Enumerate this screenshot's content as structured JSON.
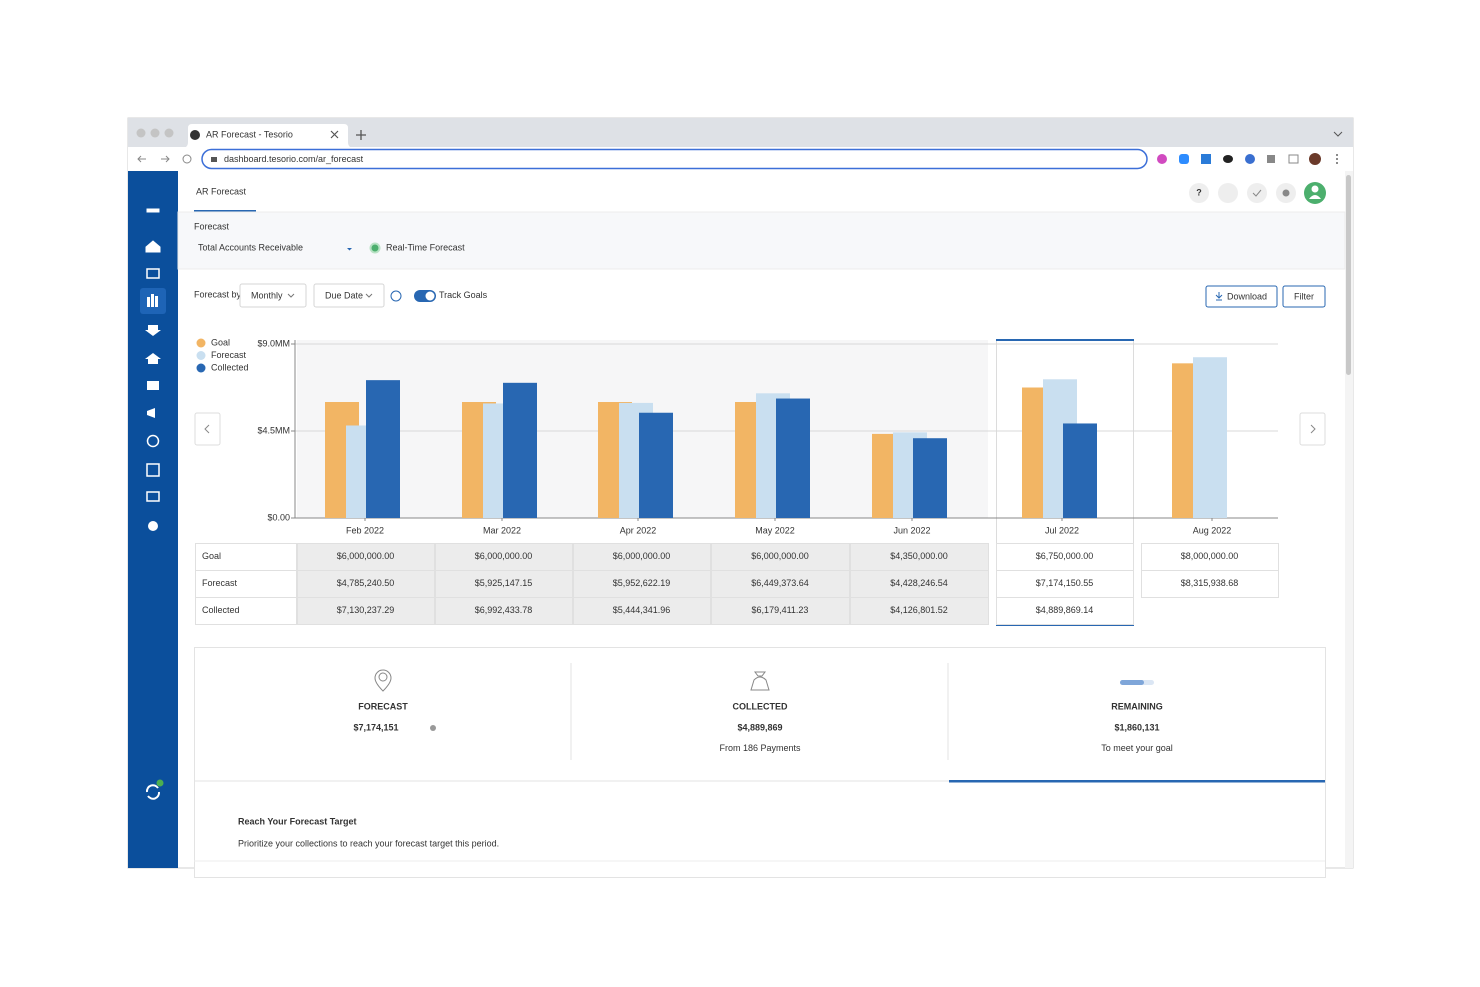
{
  "browser": {
    "tab_title": "AR Forecast - Tesorio",
    "url": "dashboard.tesorio.com/ar_forecast"
  },
  "header": {
    "page_tab": "AR Forecast",
    "help": "?",
    "section_label": "Forecast",
    "view_title": "Total Accounts Receivable",
    "status": "Real-Time Forecast"
  },
  "controls": {
    "forecast_by_label": "Forecast by",
    "period": "Monthly",
    "date_basis": "Due Date",
    "toggle": "Track Goals",
    "download": "Download",
    "filter": "Filter"
  },
  "chart_data": {
    "type": "bar",
    "categories": [
      "Feb 2022",
      "Mar 2022",
      "Apr 2022",
      "May 2022",
      "Jun 2022",
      "Jul 2022",
      "Aug 2022"
    ],
    "series": [
      {
        "name": "Goal",
        "color": "#f2b564",
        "values": [
          6000000,
          6000000,
          6000000,
          6000000,
          4350000,
          6750000,
          8000000
        ],
        "value_labels": [
          "$6,000,000.00",
          "$6,000,000.00",
          "$6,000,000.00",
          "$6,000,000.00",
          "$4,350,000.00",
          "$6,750,000.00",
          "$8,000,000.00"
        ]
      },
      {
        "name": "Forecast",
        "color": "#c9dff0",
        "values": [
          4785240.5,
          5925147.15,
          5952622.19,
          6449373.64,
          4428246.54,
          7174150.55,
          8315938.68
        ],
        "value_labels": [
          "$4,785,240.50",
          "$5,925,147.15",
          "$5,952,622.19",
          "$6,449,373.64",
          "$4,428,246.54",
          "$7,174,150.55",
          "$8,315,938.68"
        ]
      },
      {
        "name": "Collected",
        "color": "#2867b2",
        "values": [
          7130237.29,
          6992433.78,
          5444341.96,
          6179411.23,
          4126801.52,
          4889869.14,
          null
        ],
        "value_labels": [
          "$7,130,237.29",
          "$6,992,433.78",
          "$5,444,341.96",
          "$6,179,411.23",
          "$4,126,801.52",
          "$4,889,869.14",
          null
        ]
      }
    ],
    "ylim": [
      0,
      9000000
    ],
    "yticks": [
      {
        "value": 0,
        "label": "$0.00"
      },
      {
        "value": 4500000,
        "label": "$4.5MM"
      },
      {
        "value": 9000000,
        "label": "$9.0MM"
      }
    ],
    "grid": true,
    "legend": "top-left"
  },
  "summary": [
    {
      "label": "FORECAST",
      "value": "$7,174,151",
      "note": null
    },
    {
      "label": "COLLECTED",
      "value": "$4,889,869",
      "note": "From 186 Payments"
    },
    {
      "label": "REMAINING",
      "value": "$1,860,131",
      "note": "To meet your goal"
    }
  ],
  "target": {
    "title": "Reach Your Forecast Target",
    "subtitle": "Prioritize your collections to reach your forecast target this period."
  }
}
